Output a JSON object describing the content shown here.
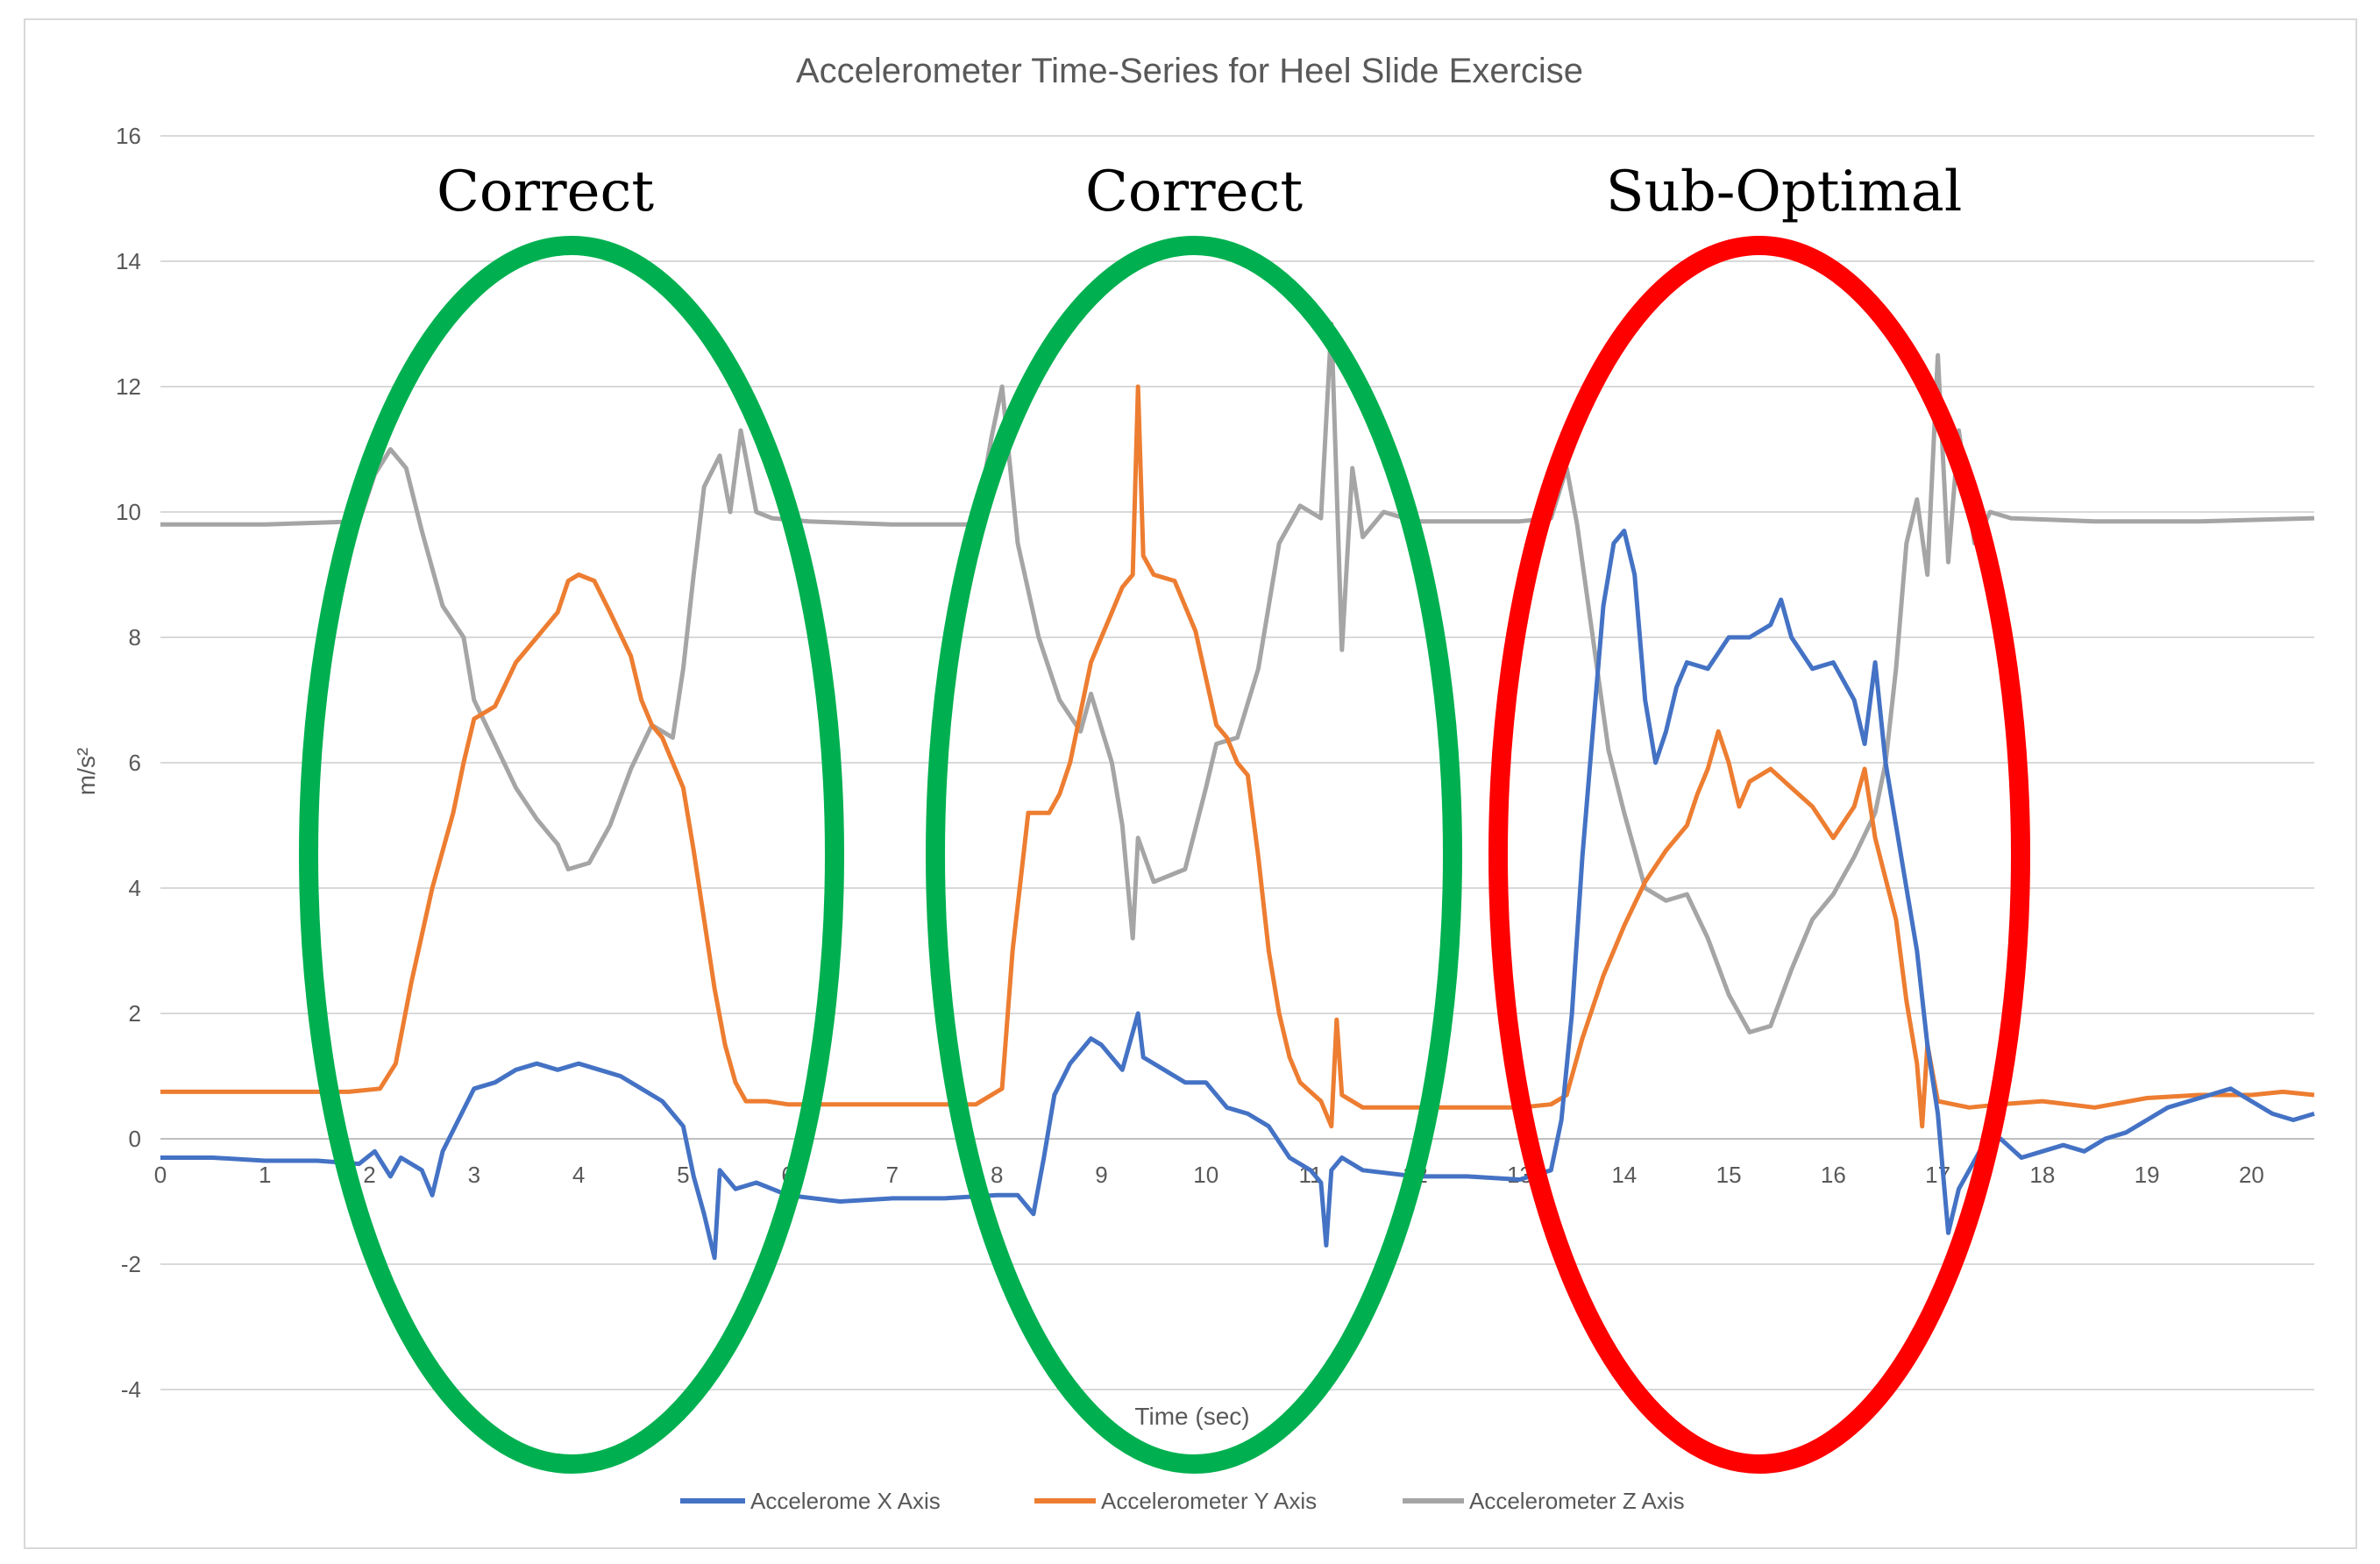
{
  "chart_data": {
    "type": "line",
    "title": "Accelerometer Time-Series for Heel Slide Exercise",
    "xlabel": "Time (sec)",
    "ylabel": "m/s²",
    "xlim": [
      0,
      20.6
    ],
    "ylim": [
      -4,
      16
    ],
    "grid": true,
    "legend_position": "bottom",
    "x_ticks": [
      "0",
      "1",
      "2",
      "3",
      "4",
      "5",
      "6",
      "7",
      "8",
      "9",
      "10",
      "11",
      "12",
      "13",
      "14",
      "15",
      "16",
      "17",
      "18",
      "19",
      "20"
    ],
    "y_ticks": [
      "-4",
      "-2",
      "0",
      "2",
      "4",
      "6",
      "8",
      "10",
      "12",
      "14",
      "16"
    ],
    "series": [
      {
        "name": "Accelerometer Z Axis",
        "color": "#A5A5A5",
        "points": [
          [
            0,
            9.8
          ],
          [
            1,
            9.8
          ],
          [
            1.9,
            9.85
          ],
          [
            2.05,
            10.6
          ],
          [
            2.2,
            11.0
          ],
          [
            2.35,
            10.7
          ],
          [
            2.5,
            9.7
          ],
          [
            2.7,
            8.5
          ],
          [
            2.9,
            8.0
          ],
          [
            3.0,
            7.0
          ],
          [
            3.2,
            6.3
          ],
          [
            3.4,
            5.6
          ],
          [
            3.6,
            5.1
          ],
          [
            3.8,
            4.7
          ],
          [
            3.9,
            4.3
          ],
          [
            4.1,
            4.4
          ],
          [
            4.3,
            5.0
          ],
          [
            4.5,
            5.9
          ],
          [
            4.7,
            6.6
          ],
          [
            4.9,
            6.4
          ],
          [
            5.0,
            7.5
          ],
          [
            5.1,
            9.0
          ],
          [
            5.2,
            10.4
          ],
          [
            5.35,
            10.9
          ],
          [
            5.45,
            10.0
          ],
          [
            5.55,
            11.3
          ],
          [
            5.7,
            10.0
          ],
          [
            5.85,
            9.9
          ],
          [
            6.2,
            9.85
          ],
          [
            7.0,
            9.8
          ],
          [
            7.8,
            9.8
          ],
          [
            7.95,
            11.2
          ],
          [
            8.05,
            12.0
          ],
          [
            8.2,
            9.5
          ],
          [
            8.4,
            8.0
          ],
          [
            8.6,
            7.0
          ],
          [
            8.8,
            6.5
          ],
          [
            8.9,
            7.1
          ],
          [
            9.1,
            6.0
          ],
          [
            9.2,
            5.0
          ],
          [
            9.3,
            3.2
          ],
          [
            9.35,
            4.8
          ],
          [
            9.5,
            4.1
          ],
          [
            9.8,
            4.3
          ],
          [
            10.0,
            5.6
          ],
          [
            10.1,
            6.3
          ],
          [
            10.3,
            6.4
          ],
          [
            10.5,
            7.5
          ],
          [
            10.7,
            9.5
          ],
          [
            10.9,
            10.1
          ],
          [
            11.1,
            9.9
          ],
          [
            11.2,
            13.0
          ],
          [
            11.3,
            7.8
          ],
          [
            11.4,
            10.7
          ],
          [
            11.5,
            9.6
          ],
          [
            11.7,
            10.0
          ],
          [
            12.0,
            9.85
          ],
          [
            13.0,
            9.85
          ],
          [
            13.3,
            9.9
          ],
          [
            13.45,
            10.7
          ],
          [
            13.55,
            9.8
          ],
          [
            13.7,
            8.0
          ],
          [
            13.85,
            6.2
          ],
          [
            14.0,
            5.2
          ],
          [
            14.2,
            4.0
          ],
          [
            14.4,
            3.8
          ],
          [
            14.6,
            3.9
          ],
          [
            14.8,
            3.2
          ],
          [
            15.0,
            2.3
          ],
          [
            15.2,
            1.7
          ],
          [
            15.4,
            1.8
          ],
          [
            15.6,
            2.7
          ],
          [
            15.8,
            3.5
          ],
          [
            16.0,
            3.9
          ],
          [
            16.2,
            4.5
          ],
          [
            16.4,
            5.2
          ],
          [
            16.5,
            6.0
          ],
          [
            16.6,
            7.5
          ],
          [
            16.7,
            9.5
          ],
          [
            16.8,
            10.2
          ],
          [
            16.9,
            9.0
          ],
          [
            17.0,
            12.5
          ],
          [
            17.1,
            9.2
          ],
          [
            17.2,
            11.3
          ],
          [
            17.35,
            9.5
          ],
          [
            17.5,
            10.0
          ],
          [
            17.7,
            9.9
          ],
          [
            18.5,
            9.85
          ],
          [
            19.5,
            9.85
          ],
          [
            20.6,
            9.9
          ]
        ]
      },
      {
        "name": "Accelerometer Y Axis",
        "color": "#ED7D31",
        "points": [
          [
            0,
            0.75
          ],
          [
            1,
            0.75
          ],
          [
            1.8,
            0.75
          ],
          [
            2.1,
            0.8
          ],
          [
            2.25,
            1.2
          ],
          [
            2.4,
            2.5
          ],
          [
            2.6,
            4.0
          ],
          [
            2.8,
            5.2
          ],
          [
            2.9,
            6.0
          ],
          [
            3.0,
            6.7
          ],
          [
            3.2,
            6.9
          ],
          [
            3.4,
            7.6
          ],
          [
            3.6,
            8.0
          ],
          [
            3.8,
            8.4
          ],
          [
            3.9,
            8.9
          ],
          [
            4.0,
            9.0
          ],
          [
            4.15,
            8.9
          ],
          [
            4.3,
            8.4
          ],
          [
            4.5,
            7.7
          ],
          [
            4.6,
            7.0
          ],
          [
            4.7,
            6.6
          ],
          [
            4.8,
            6.4
          ],
          [
            5.0,
            5.6
          ],
          [
            5.1,
            4.6
          ],
          [
            5.2,
            3.5
          ],
          [
            5.3,
            2.4
          ],
          [
            5.4,
            1.5
          ],
          [
            5.5,
            0.9
          ],
          [
            5.6,
            0.6
          ],
          [
            5.8,
            0.6
          ],
          [
            6.0,
            0.55
          ],
          [
            7.0,
            0.55
          ],
          [
            7.8,
            0.55
          ],
          [
            8.05,
            0.8
          ],
          [
            8.15,
            3.0
          ],
          [
            8.3,
            5.2
          ],
          [
            8.5,
            5.2
          ],
          [
            8.6,
            5.5
          ],
          [
            8.7,
            6.0
          ],
          [
            8.8,
            6.8
          ],
          [
            8.9,
            7.6
          ],
          [
            9.0,
            8.0
          ],
          [
            9.1,
            8.4
          ],
          [
            9.2,
            8.8
          ],
          [
            9.3,
            9.0
          ],
          [
            9.35,
            12.0
          ],
          [
            9.4,
            9.3
          ],
          [
            9.5,
            9.0
          ],
          [
            9.7,
            8.9
          ],
          [
            9.9,
            8.1
          ],
          [
            10.1,
            6.6
          ],
          [
            10.2,
            6.4
          ],
          [
            10.3,
            6.0
          ],
          [
            10.4,
            5.8
          ],
          [
            10.5,
            4.5
          ],
          [
            10.6,
            3.0
          ],
          [
            10.7,
            2.0
          ],
          [
            10.8,
            1.3
          ],
          [
            10.9,
            0.9
          ],
          [
            11.1,
            0.6
          ],
          [
            11.2,
            0.2
          ],
          [
            11.25,
            1.9
          ],
          [
            11.3,
            0.7
          ],
          [
            11.5,
            0.5
          ],
          [
            12.0,
            0.5
          ],
          [
            13.0,
            0.5
          ],
          [
            13.3,
            0.55
          ],
          [
            13.45,
            0.7
          ],
          [
            13.6,
            1.6
          ],
          [
            13.8,
            2.6
          ],
          [
            14.0,
            3.4
          ],
          [
            14.2,
            4.1
          ],
          [
            14.4,
            4.6
          ],
          [
            14.6,
            5.0
          ],
          [
            14.7,
            5.5
          ],
          [
            14.8,
            5.9
          ],
          [
            14.9,
            6.5
          ],
          [
            15.0,
            6.0
          ],
          [
            15.1,
            5.3
          ],
          [
            15.2,
            5.7
          ],
          [
            15.4,
            5.9
          ],
          [
            15.6,
            5.6
          ],
          [
            15.8,
            5.3
          ],
          [
            16.0,
            4.8
          ],
          [
            16.2,
            5.3
          ],
          [
            16.3,
            5.9
          ],
          [
            16.4,
            4.8
          ],
          [
            16.6,
            3.5
          ],
          [
            16.7,
            2.2
          ],
          [
            16.8,
            1.2
          ],
          [
            16.85,
            0.2
          ],
          [
            16.9,
            1.5
          ],
          [
            17.0,
            0.6
          ],
          [
            17.3,
            0.5
          ],
          [
            17.6,
            0.55
          ],
          [
            18.0,
            0.6
          ],
          [
            18.5,
            0.5
          ],
          [
            19.0,
            0.65
          ],
          [
            19.5,
            0.7
          ],
          [
            20.0,
            0.7
          ],
          [
            20.3,
            0.75
          ],
          [
            20.6,
            0.7
          ]
        ]
      },
      {
        "name": "Accelerometer X Axis",
        "color": "#4472C4",
        "points": [
          [
            0,
            -0.3
          ],
          [
            0.5,
            -0.3
          ],
          [
            1.0,
            -0.35
          ],
          [
            1.5,
            -0.35
          ],
          [
            1.9,
            -0.4
          ],
          [
            2.05,
            -0.2
          ],
          [
            2.2,
            -0.6
          ],
          [
            2.3,
            -0.3
          ],
          [
            2.5,
            -0.5
          ],
          [
            2.6,
            -0.9
          ],
          [
            2.7,
            -0.2
          ],
          [
            2.85,
            0.3
          ],
          [
            3.0,
            0.8
          ],
          [
            3.2,
            0.9
          ],
          [
            3.4,
            1.1
          ],
          [
            3.6,
            1.2
          ],
          [
            3.8,
            1.1
          ],
          [
            4.0,
            1.2
          ],
          [
            4.2,
            1.1
          ],
          [
            4.4,
            1.0
          ],
          [
            4.6,
            0.8
          ],
          [
            4.8,
            0.6
          ],
          [
            5.0,
            0.2
          ],
          [
            5.1,
            -0.6
          ],
          [
            5.2,
            -1.2
          ],
          [
            5.3,
            -1.9
          ],
          [
            5.35,
            -0.5
          ],
          [
            5.5,
            -0.8
          ],
          [
            5.7,
            -0.7
          ],
          [
            6.0,
            -0.9
          ],
          [
            6.5,
            -1.0
          ],
          [
            7.0,
            -0.95
          ],
          [
            7.5,
            -0.95
          ],
          [
            8.0,
            -0.9
          ],
          [
            8.2,
            -0.9
          ],
          [
            8.35,
            -1.2
          ],
          [
            8.45,
            -0.3
          ],
          [
            8.55,
            0.7
          ],
          [
            8.7,
            1.2
          ],
          [
            8.9,
            1.6
          ],
          [
            9.0,
            1.5
          ],
          [
            9.2,
            1.1
          ],
          [
            9.35,
            2.0
          ],
          [
            9.4,
            1.3
          ],
          [
            9.6,
            1.1
          ],
          [
            9.8,
            0.9
          ],
          [
            10.0,
            0.9
          ],
          [
            10.2,
            0.5
          ],
          [
            10.4,
            0.4
          ],
          [
            10.6,
            0.2
          ],
          [
            10.8,
            -0.3
          ],
          [
            11.0,
            -0.5
          ],
          [
            11.1,
            -0.7
          ],
          [
            11.15,
            -1.7
          ],
          [
            11.2,
            -0.5
          ],
          [
            11.3,
            -0.3
          ],
          [
            11.5,
            -0.5
          ],
          [
            12.0,
            -0.6
          ],
          [
            12.5,
            -0.6
          ],
          [
            13.0,
            -0.65
          ],
          [
            13.3,
            -0.5
          ],
          [
            13.4,
            0.3
          ],
          [
            13.5,
            2.0
          ],
          [
            13.6,
            4.5
          ],
          [
            13.7,
            6.5
          ],
          [
            13.8,
            8.5
          ],
          [
            13.9,
            9.5
          ],
          [
            14.0,
            9.7
          ],
          [
            14.1,
            9.0
          ],
          [
            14.2,
            7.0
          ],
          [
            14.3,
            6.0
          ],
          [
            14.4,
            6.5
          ],
          [
            14.5,
            7.2
          ],
          [
            14.6,
            7.6
          ],
          [
            14.8,
            7.5
          ],
          [
            15.0,
            8.0
          ],
          [
            15.2,
            8.0
          ],
          [
            15.4,
            8.2
          ],
          [
            15.5,
            8.6
          ],
          [
            15.6,
            8.0
          ],
          [
            15.8,
            7.5
          ],
          [
            16.0,
            7.6
          ],
          [
            16.2,
            7.0
          ],
          [
            16.3,
            6.3
          ],
          [
            16.4,
            7.6
          ],
          [
            16.5,
            6.0
          ],
          [
            16.6,
            5.0
          ],
          [
            16.7,
            4.0
          ],
          [
            16.8,
            3.0
          ],
          [
            16.9,
            1.5
          ],
          [
            17.0,
            0.4
          ],
          [
            17.1,
            -1.5
          ],
          [
            17.2,
            -0.8
          ],
          [
            17.3,
            -0.5
          ],
          [
            17.4,
            -0.2
          ],
          [
            17.6,
            0.0
          ],
          [
            17.8,
            -0.3
          ],
          [
            18.0,
            -0.2
          ],
          [
            18.2,
            -0.1
          ],
          [
            18.4,
            -0.2
          ],
          [
            18.6,
            0.0
          ],
          [
            18.8,
            0.1
          ],
          [
            19.0,
            0.3
          ],
          [
            19.2,
            0.5
          ],
          [
            19.4,
            0.6
          ],
          [
            19.6,
            0.7
          ],
          [
            19.8,
            0.8
          ],
          [
            20.0,
            0.6
          ],
          [
            20.2,
            0.4
          ],
          [
            20.4,
            0.3
          ],
          [
            20.6,
            0.4
          ]
        ]
      }
    ],
    "legend_order": [
      "Accelerometer X Axis",
      "Accelerometer Y Axis",
      "Accelerometer Z Axis"
    ],
    "annotations": [
      {
        "text": "Correct",
        "color": "#00B050"
      },
      {
        "text": "Correct",
        "color": "#00B050"
      },
      {
        "text": "Sub-Optimal",
        "color": "#FF0000"
      }
    ]
  },
  "legend": {
    "x_label": "Accelerome X Axis",
    "y_label": "Accelerometer Y Axis",
    "z_label": "Accelerometer Z Axis"
  }
}
